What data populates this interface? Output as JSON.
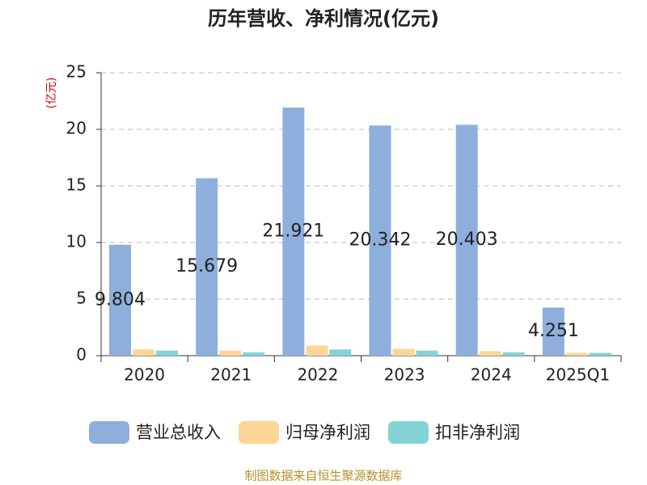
{
  "chart_data": {
    "type": "bar",
    "title": "历年营收、净利情况(亿元)",
    "y_label": "(亿元)",
    "categories": [
      "2020",
      "2021",
      "2022",
      "2023",
      "2024",
      "2025Q1"
    ],
    "series": [
      {
        "name": "营业总收入",
        "color": "#8eafdc",
        "values": [
          9.804,
          15.679,
          21.921,
          20.342,
          20.403,
          4.251
        ]
      },
      {
        "name": "归母净利润",
        "color": "#fdd596",
        "values": [
          0.55,
          0.45,
          0.9,
          0.6,
          0.4,
          0.25
        ]
      },
      {
        "name": "扣非净利润",
        "color": "#84d4d6",
        "values": [
          0.45,
          0.3,
          0.55,
          0.45,
          0.3,
          0.25
        ]
      }
    ],
    "ylim": [
      0,
      25
    ],
    "yticks": [
      0,
      5,
      10,
      15,
      20,
      25
    ],
    "grid": true,
    "legend": "bottom",
    "footer": "制图数据来自恒生聚源数据库"
  }
}
